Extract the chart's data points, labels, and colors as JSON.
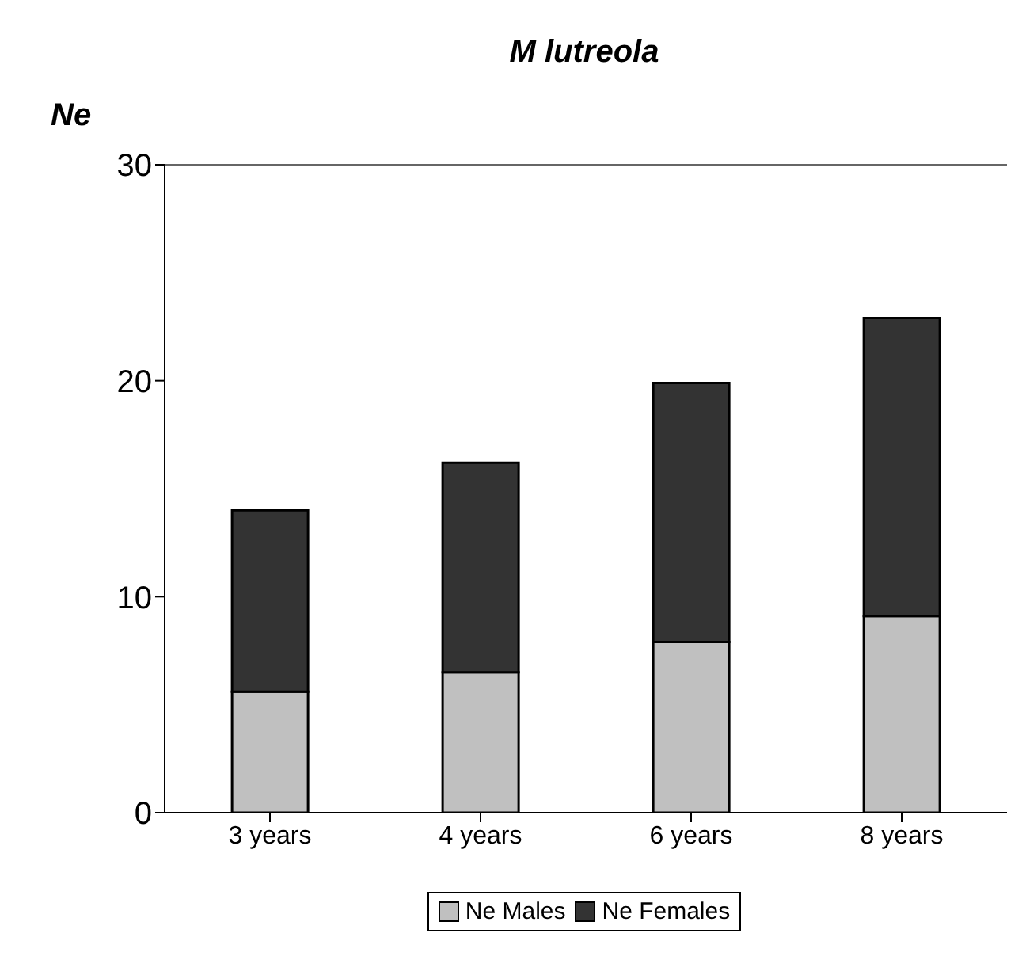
{
  "chart_data": {
    "type": "bar",
    "title": "M lutreola",
    "ylabel": "Ne",
    "categories": [
      "3 years",
      "4 years",
      "6 years",
      "8 years"
    ],
    "stacked": true,
    "series": [
      {
        "name": "Ne Males",
        "color": "#c0c0c0",
        "values": [
          5.6,
          6.5,
          7.9,
          9.1
        ]
      },
      {
        "name": "Ne Females",
        "color": "#333333",
        "values": [
          8.4,
          9.7,
          12.0,
          13.8
        ]
      }
    ],
    "ylim": [
      0,
      30
    ],
    "yticks": [
      0,
      10,
      20,
      30
    ],
    "legend": "bottom"
  }
}
